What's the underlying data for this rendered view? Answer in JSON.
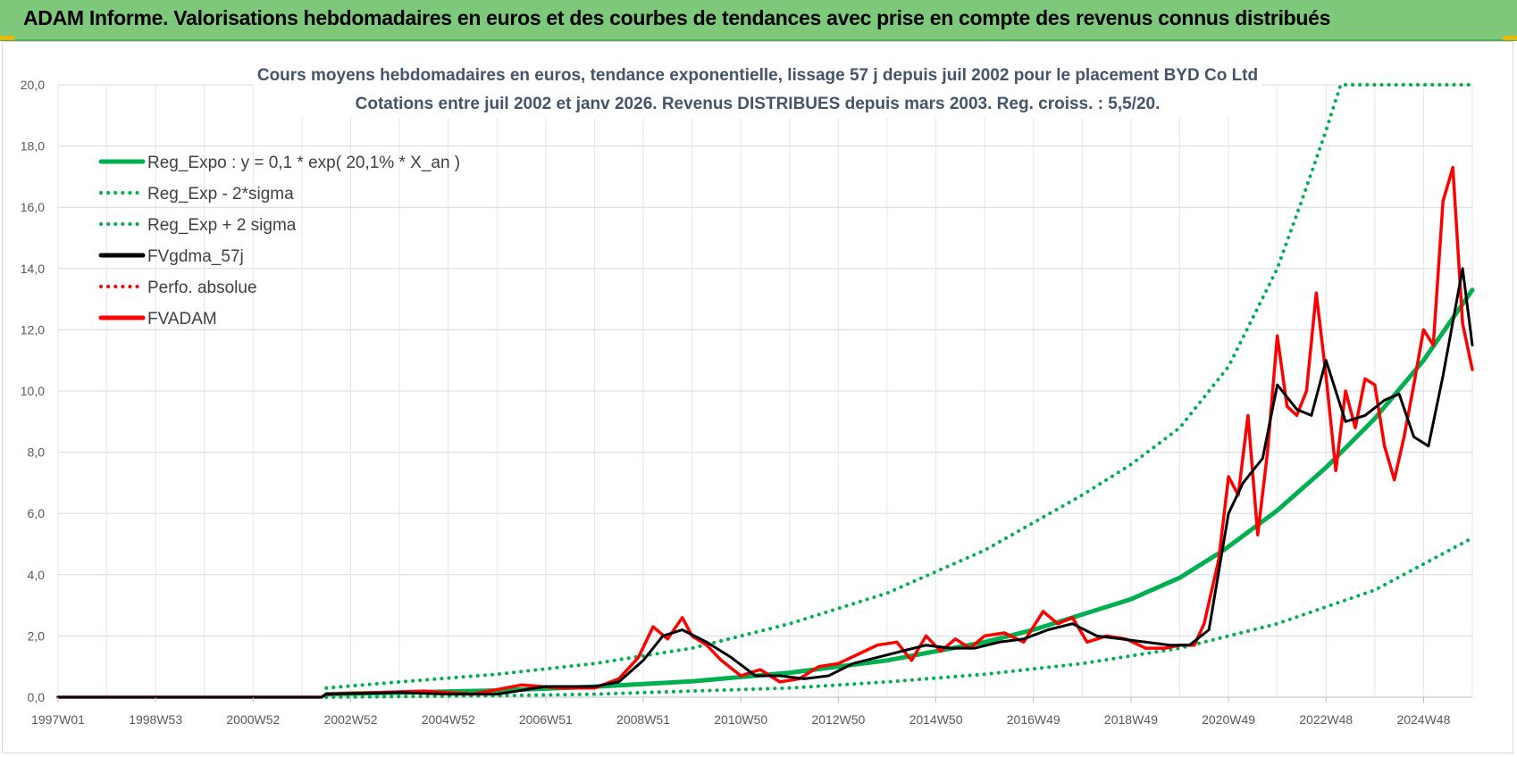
{
  "banner": {
    "title": "ADAM Informe. Valorisations hebdomadaires en euros et des courbes de tendances avec prise en compte des revenus connus distribués"
  },
  "chart_data": {
    "type": "line",
    "title": "Cours moyens hebdomadaires en euros, tendance exponentielle, lissage 57 j depuis juil 2002 pour le placement BYD Co Ltd",
    "subtitle": "Cotations entre juil 2002 et janv 2026. Revenus DISTRIBUES depuis mars 2003. Reg. croiss. : 5,5/20.",
    "x_ticks": [
      "1997W01",
      "1998W53",
      "2000W52",
      "2002W52",
      "2004W52",
      "2006W51",
      "2008W51",
      "2010W50",
      "2012W50",
      "2014W50",
      "2016W49",
      "2018W49",
      "2020W49",
      "2022W48",
      "2024W48"
    ],
    "x_range": [
      1997.0,
      2026.0
    ],
    "ylim": [
      0,
      20
    ],
    "y_ticks": [
      "0,0",
      "2,0",
      "4,0",
      "6,0",
      "8,0",
      "10,0",
      "12,0",
      "14,0",
      "16,0",
      "18,0",
      "20,0"
    ],
    "grid": true,
    "legend_position": "top-left",
    "legend": [
      {
        "label": "Reg_Expo : y = 0,1 * exp( 20,1% *  X_an )",
        "color": "#00b050",
        "style": "solid"
      },
      {
        "label": "Reg_Exp - 2*sigma",
        "color": "#00b050",
        "style": "dotted"
      },
      {
        "label": "Reg_Exp + 2 sigma",
        "color": "#00b050",
        "style": "dotted"
      },
      {
        "label": "FVgdma_57j",
        "color": "#000000",
        "style": "solid"
      },
      {
        "label": "Perfo. absolue",
        "color": "#ff0000",
        "style": "dotted"
      },
      {
        "label": "FVADAM",
        "color": "#ff0000",
        "style": "solid"
      }
    ],
    "series": [
      {
        "name": "Reg_Expo : y = 0,1 * exp( 20,1% *  X_an )",
        "color": "#00b050",
        "x": [
          2002.5,
          2004.0,
          2006.0,
          2008.0,
          2010.0,
          2012.0,
          2014.0,
          2016.0,
          2017.0,
          2018.0,
          2019.0,
          2020.0,
          2020.9,
          2022.0,
          2023.0,
          2024.0,
          2025.0,
          2026.0
        ],
        "y": [
          0.1,
          0.15,
          0.22,
          0.34,
          0.52,
          0.8,
          1.2,
          1.8,
          2.2,
          2.7,
          3.2,
          3.9,
          4.8,
          6.1,
          7.5,
          9.1,
          11.0,
          13.3
        ]
      },
      {
        "name": "Reg_Exp - 2*sigma",
        "color": "#00b050",
        "x": [
          2002.5,
          2006.0,
          2008.0,
          2010.0,
          2012.0,
          2014.0,
          2016.0,
          2018.0,
          2020.0,
          2022.0,
          2024.0,
          2026.0
        ],
        "y": [
          0.0,
          0.05,
          0.1,
          0.2,
          0.3,
          0.5,
          0.75,
          1.1,
          1.6,
          2.4,
          3.5,
          5.2
        ]
      },
      {
        "name": "Reg_Exp + 2 sigma",
        "color": "#00b050",
        "x": [
          2002.5,
          2004.0,
          2006.0,
          2008.0,
          2010.0,
          2012.0,
          2014.0,
          2016.0,
          2018.0,
          2019.0,
          2020.0,
          2021.0,
          2022.0,
          2022.5,
          2023.0,
          2023.3,
          2024.0,
          2026.0
        ],
        "y": [
          0.3,
          0.5,
          0.75,
          1.1,
          1.6,
          2.4,
          3.4,
          4.8,
          6.6,
          7.6,
          8.8,
          10.8,
          14.0,
          16.2,
          18.5,
          20.0,
          20.0,
          20.0
        ]
      },
      {
        "name": "FVgdma_57j",
        "color": "#000000",
        "x": [
          1997.0,
          2002.4,
          2002.5,
          2004.0,
          2005.0,
          2006.0,
          2007.0,
          2008.0,
          2008.5,
          2009.0,
          2009.4,
          2009.8,
          2010.3,
          2010.8,
          2011.3,
          2011.8,
          2012.3,
          2012.8,
          2013.3,
          2013.8,
          2014.3,
          2014.8,
          2015.3,
          2015.8,
          2016.3,
          2016.8,
          2017.3,
          2017.8,
          2018.3,
          2018.8,
          2019.3,
          2019.8,
          2020.2,
          2020.6,
          2021.0,
          2021.3,
          2021.7,
          2022.0,
          2022.4,
          2022.7,
          2023.0,
          2023.4,
          2023.8,
          2024.2,
          2024.5,
          2024.8,
          2025.1,
          2025.4,
          2025.8,
          2026.0
        ],
        "y": [
          0.0,
          0.0,
          0.1,
          0.15,
          0.1,
          0.1,
          0.35,
          0.35,
          0.5,
          1.2,
          2.0,
          2.2,
          1.8,
          1.3,
          0.7,
          0.7,
          0.6,
          0.7,
          1.1,
          1.3,
          1.5,
          1.7,
          1.6,
          1.6,
          1.8,
          1.9,
          2.2,
          2.4,
          2.0,
          1.9,
          1.8,
          1.7,
          1.7,
          2.2,
          6.0,
          7.0,
          7.8,
          10.2,
          9.4,
          9.2,
          11.0,
          9.0,
          9.2,
          9.7,
          9.9,
          8.5,
          8.2,
          10.5,
          14.0,
          11.5
        ]
      },
      {
        "name": "FVADAM",
        "color": "#ff0000",
        "x": [
          1997.0,
          2002.4,
          2002.5,
          2003.5,
          2004.5,
          2005.5,
          2006.5,
          2007.3,
          2008.0,
          2008.5,
          2008.9,
          2009.2,
          2009.5,
          2009.8,
          2010.0,
          2010.3,
          2010.6,
          2011.0,
          2011.4,
          2011.8,
          2012.2,
          2012.6,
          2013.0,
          2013.4,
          2013.8,
          2014.2,
          2014.5,
          2014.8,
          2015.1,
          2015.4,
          2015.7,
          2016.0,
          2016.4,
          2016.8,
          2017.2,
          2017.5,
          2017.8,
          2018.1,
          2018.5,
          2018.9,
          2019.3,
          2019.7,
          2020.0,
          2020.3,
          2020.5,
          2020.8,
          2021.0,
          2021.2,
          2021.4,
          2021.6,
          2021.8,
          2022.0,
          2022.2,
          2022.4,
          2022.6,
          2022.8,
          2023.0,
          2023.2,
          2023.4,
          2023.6,
          2023.8,
          2024.0,
          2024.2,
          2024.4,
          2024.6,
          2024.8,
          2025.0,
          2025.2,
          2025.4,
          2025.6,
          2025.8,
          2026.0
        ],
        "y": [
          0.0,
          0.0,
          0.1,
          0.15,
          0.2,
          0.1,
          0.4,
          0.3,
          0.3,
          0.6,
          1.3,
          2.3,
          1.9,
          2.6,
          2.0,
          1.7,
          1.2,
          0.7,
          0.9,
          0.5,
          0.6,
          1.0,
          1.1,
          1.4,
          1.7,
          1.8,
          1.2,
          2.0,
          1.5,
          1.9,
          1.6,
          2.0,
          2.1,
          1.8,
          2.8,
          2.4,
          2.6,
          1.8,
          2.0,
          1.9,
          1.6,
          1.6,
          1.7,
          1.7,
          2.4,
          4.5,
          7.2,
          6.6,
          9.2,
          5.3,
          8.0,
          11.8,
          9.5,
          9.2,
          10.0,
          13.2,
          10.5,
          7.4,
          10.0,
          8.8,
          10.4,
          10.2,
          8.2,
          7.1,
          8.5,
          10.2,
          12.0,
          11.5,
          16.2,
          17.3,
          12.2,
          10.7
        ]
      }
    ]
  }
}
